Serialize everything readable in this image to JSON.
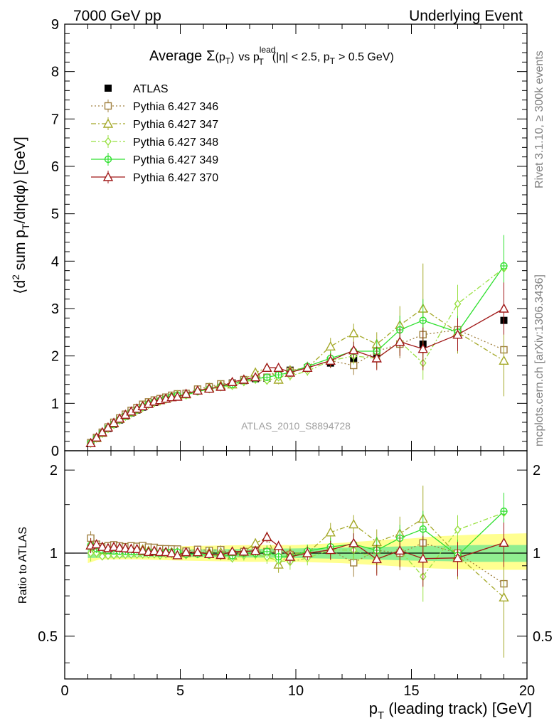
{
  "header": {
    "left": "7000 GeV pp",
    "right": "Underlying Event"
  },
  "side_labels": {
    "rivet": "Rivet 3.1.10, ≥ 300k events",
    "mcplots": "mcplots.cern.ch [arXiv:1306.3436]"
  },
  "watermark": "ATLAS_2010_S8894728",
  "chart_data": [
    {
      "type": "scatter",
      "panel": "main",
      "title_parts": {
        "prefix": "Average",
        "sigma": "Σ",
        "pt": "(p",
        "pt_sub": "T",
        "pt_close": ")",
        "vs": "vs p",
        "lead_sup": "lead",
        "lead_sub": "T",
        "cut1": "(|η| < 2.5, p",
        "cut_sub": "T",
        "cut2": "> 0.5 GeV)"
      },
      "ylabel_parts": {
        "a": "⟨d",
        "sup": "2",
        "b": " sum p",
        "sub": "T",
        "c": "/dηdφ⟩ [GeV]"
      },
      "xlim": [
        0,
        20
      ],
      "ylim": [
        0,
        9
      ],
      "yticks": [
        0,
        1,
        2,
        3,
        4,
        5,
        6,
        7,
        8,
        9
      ],
      "x": [
        1.125,
        1.375,
        1.625,
        1.875,
        2.125,
        2.375,
        2.625,
        2.875,
        3.125,
        3.375,
        3.625,
        3.875,
        4.125,
        4.375,
        4.625,
        4.875,
        5.25,
        5.75,
        6.25,
        6.75,
        7.25,
        7.75,
        8.25,
        8.75,
        9.25,
        9.75,
        10.5,
        11.5,
        12.5,
        13.5,
        14.5,
        15.5,
        17.0,
        19.0
      ],
      "legend_position": "top-left",
      "series": [
        {
          "name": "ATLAS",
          "color": "#000000",
          "marker": "filled-square",
          "line": "none",
          "values": [
            0.15,
            0.26,
            0.37,
            0.47,
            0.56,
            0.65,
            0.73,
            0.8,
            0.86,
            0.92,
            0.98,
            1.02,
            1.06,
            1.09,
            1.13,
            1.16,
            1.19,
            1.26,
            1.32,
            1.37,
            1.43,
            1.48,
            1.52,
            1.53,
            1.65,
            1.7,
            1.75,
            1.85,
            1.95,
            2.05,
            2.25,
            2.25,
            2.55,
            2.75
          ],
          "errors": [
            0.01,
            0.01,
            0.01,
            0.01,
            0.01,
            0.01,
            0.01,
            0.01,
            0.01,
            0.01,
            0.01,
            0.01,
            0.02,
            0.02,
            0.02,
            0.02,
            0.02,
            0.03,
            0.03,
            0.04,
            0.04,
            0.05,
            0.05,
            0.06,
            0.07,
            0.08,
            0.08,
            0.1,
            0.12,
            0.15,
            0.18,
            0.22,
            0.25,
            0.35
          ]
        },
        {
          "name": "Pythia 6.427 346",
          "color": "#a08040",
          "marker": "open-square",
          "line": "dotted",
          "values": [
            0.17,
            0.28,
            0.39,
            0.5,
            0.6,
            0.69,
            0.77,
            0.85,
            0.91,
            0.98,
            1.03,
            1.07,
            1.1,
            1.13,
            1.17,
            1.2,
            1.21,
            1.3,
            1.35,
            1.41,
            1.42,
            1.5,
            1.55,
            1.55,
            1.68,
            1.68,
            1.75,
            1.9,
            1.8,
            2.1,
            2.25,
            2.45,
            2.55,
            2.13
          ],
          "errors": [
            0.01,
            0.01,
            0.01,
            0.01,
            0.01,
            0.01,
            0.01,
            0.01,
            0.02,
            0.02,
            0.02,
            0.02,
            0.02,
            0.02,
            0.03,
            0.03,
            0.03,
            0.04,
            0.04,
            0.05,
            0.05,
            0.06,
            0.06,
            0.08,
            0.1,
            0.1,
            0.1,
            0.15,
            0.2,
            0.25,
            0.3,
            0.5,
            0.4,
            0.8
          ]
        },
        {
          "name": "Pythia 6.427 347",
          "color": "#a4a828",
          "marker": "open-triangle",
          "line": "dashdot",
          "values": [
            0.16,
            0.27,
            0.38,
            0.49,
            0.58,
            0.67,
            0.75,
            0.82,
            0.88,
            0.95,
            1.0,
            1.04,
            1.07,
            1.1,
            1.14,
            1.17,
            1.19,
            1.27,
            1.33,
            1.38,
            1.4,
            1.5,
            1.65,
            1.75,
            1.5,
            1.7,
            1.75,
            2.2,
            2.48,
            2.25,
            2.65,
            3.0,
            2.5,
            1.9
          ],
          "errors": [
            0.01,
            0.01,
            0.01,
            0.01,
            0.01,
            0.01,
            0.01,
            0.01,
            0.02,
            0.02,
            0.02,
            0.02,
            0.02,
            0.02,
            0.03,
            0.03,
            0.03,
            0.04,
            0.04,
            0.05,
            0.05,
            0.06,
            0.07,
            0.08,
            0.1,
            0.1,
            0.12,
            0.18,
            0.2,
            0.25,
            0.4,
            0.95,
            0.45,
            0.75
          ]
        },
        {
          "name": "Pythia 6.427 348",
          "color": "#98e040",
          "marker": "open-diamond",
          "line": "dashdot",
          "values": [
            0.15,
            0.26,
            0.36,
            0.46,
            0.55,
            0.64,
            0.72,
            0.79,
            0.85,
            0.91,
            0.97,
            1.01,
            1.04,
            1.08,
            1.12,
            1.15,
            1.17,
            1.25,
            1.3,
            1.34,
            1.37,
            1.45,
            1.5,
            1.48,
            1.55,
            1.58,
            1.68,
            1.9,
            2.0,
            1.95,
            2.3,
            1.85,
            3.1,
            3.85
          ],
          "errors": [
            0.01,
            0.01,
            0.01,
            0.01,
            0.01,
            0.01,
            0.01,
            0.01,
            0.02,
            0.02,
            0.02,
            0.02,
            0.02,
            0.02,
            0.03,
            0.03,
            0.03,
            0.04,
            0.04,
            0.05,
            0.05,
            0.06,
            0.06,
            0.08,
            0.08,
            0.1,
            0.1,
            0.15,
            0.18,
            0.22,
            0.3,
            0.35,
            0.4,
            0.55
          ]
        },
        {
          "name": "Pythia 6.427 349",
          "color": "#30e030",
          "marker": "open-circle-cross",
          "line": "solid",
          "values": [
            0.16,
            0.27,
            0.38,
            0.48,
            0.57,
            0.66,
            0.74,
            0.81,
            0.87,
            0.93,
            0.99,
            1.03,
            1.06,
            1.1,
            1.14,
            1.17,
            1.18,
            1.25,
            1.3,
            1.35,
            1.4,
            1.48,
            1.52,
            1.55,
            1.6,
            1.65,
            1.78,
            1.95,
            2.1,
            2.1,
            2.55,
            2.75,
            2.5,
            3.9
          ],
          "errors": [
            0.01,
            0.01,
            0.01,
            0.01,
            0.01,
            0.01,
            0.01,
            0.01,
            0.02,
            0.02,
            0.02,
            0.02,
            0.02,
            0.02,
            0.03,
            0.03,
            0.03,
            0.04,
            0.04,
            0.05,
            0.05,
            0.06,
            0.06,
            0.08,
            0.08,
            0.1,
            0.1,
            0.15,
            0.18,
            0.25,
            0.3,
            0.45,
            0.35,
            0.65
          ]
        },
        {
          "name": "Pythia 6.427 370",
          "color": "#a01818",
          "marker": "open-triangle",
          "line": "solid",
          "values": [
            0.16,
            0.28,
            0.39,
            0.49,
            0.59,
            0.68,
            0.76,
            0.83,
            0.89,
            0.94,
            0.99,
            1.04,
            1.07,
            1.1,
            1.13,
            1.14,
            1.2,
            1.27,
            1.31,
            1.35,
            1.45,
            1.5,
            1.55,
            1.75,
            1.75,
            1.65,
            1.75,
            1.9,
            2.12,
            1.95,
            2.3,
            2.15,
            2.45,
            3.0
          ],
          "errors": [
            0.01,
            0.01,
            0.01,
            0.01,
            0.01,
            0.01,
            0.01,
            0.01,
            0.02,
            0.02,
            0.02,
            0.02,
            0.02,
            0.02,
            0.03,
            0.03,
            0.03,
            0.04,
            0.04,
            0.05,
            0.05,
            0.06,
            0.06,
            0.08,
            0.08,
            0.1,
            0.1,
            0.15,
            0.18,
            0.25,
            0.3,
            0.45,
            0.35,
            0.55
          ]
        }
      ]
    },
    {
      "type": "line",
      "panel": "ratio",
      "ylabel": "Ratio to ATLAS",
      "xlabel_parts": {
        "a": "p",
        "sub": "T",
        "b": " (leading track) [GeV]"
      },
      "xlim": [
        0,
        20
      ],
      "xticks": [
        0,
        5,
        10,
        15,
        20
      ],
      "ylim": [
        0.35,
        2.35
      ],
      "yscale": "log",
      "yticks": [
        0.5,
        1,
        2
      ],
      "yticklabels": [
        "0.5",
        "1",
        "2"
      ],
      "band_colors": {
        "outer": "#ffff90",
        "inner": "#90ee90"
      },
      "band_outer": [
        [
          1.0,
          0.92,
          1.08
        ],
        [
          1.5,
          0.95,
          1.05
        ],
        [
          3.0,
          0.95,
          1.05
        ],
        [
          5.0,
          0.94,
          1.06
        ],
        [
          8.0,
          0.93,
          1.07
        ],
        [
          10.0,
          0.93,
          1.07
        ],
        [
          12.0,
          0.92,
          1.09
        ],
        [
          14.0,
          0.9,
          1.12
        ],
        [
          15.0,
          0.89,
          1.13
        ],
        [
          16.0,
          0.88,
          1.15
        ],
        [
          18.0,
          0.87,
          1.17
        ],
        [
          20.0,
          0.87,
          1.18
        ]
      ],
      "band_inner": [
        [
          1.0,
          0.96,
          1.04
        ],
        [
          5.0,
          0.97,
          1.03
        ],
        [
          10.0,
          0.96,
          1.04
        ],
        [
          13.0,
          0.95,
          1.05
        ],
        [
          15.0,
          0.94,
          1.06
        ],
        [
          18.0,
          0.93,
          1.07
        ],
        [
          20.0,
          0.93,
          1.07
        ]
      ]
    }
  ]
}
